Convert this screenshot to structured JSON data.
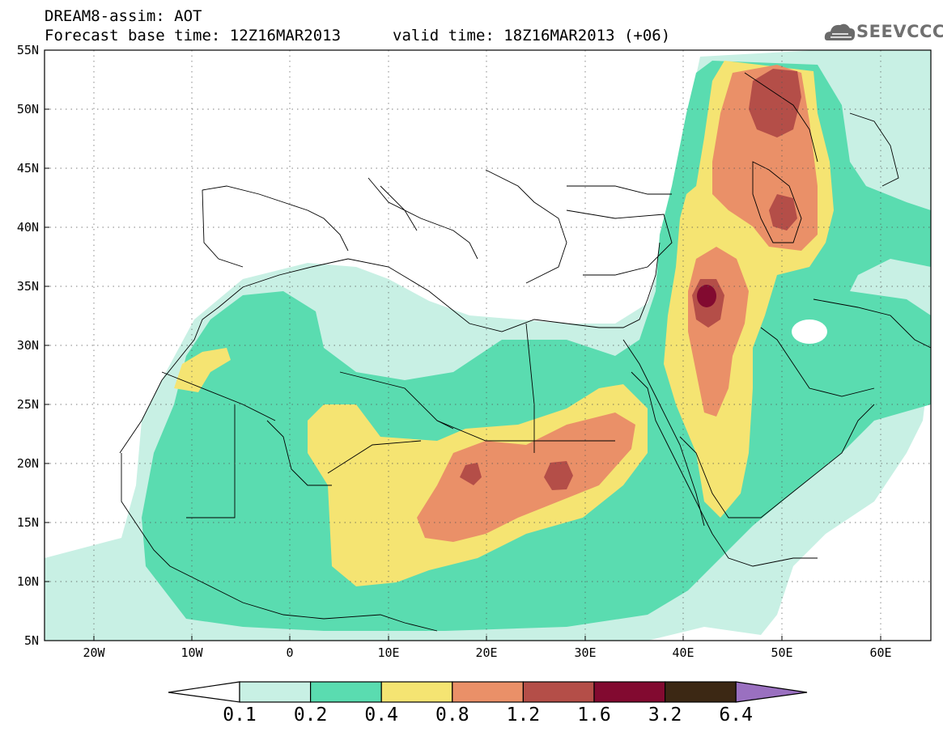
{
  "header": {
    "title": "DREAM8-assim: AOT",
    "base_time": "Forecast base time: 12Z16MAR2013",
    "valid_time": "valid time: 18Z16MAR2013 (+06)",
    "logo_text": "SEEVCCC"
  },
  "axes": {
    "lat_labels": [
      "55N",
      "50N",
      "45N",
      "40N",
      "35N",
      "30N",
      "25N",
      "20N",
      "15N",
      "10N",
      "5N"
    ],
    "lon_labels": [
      "20W",
      "10W",
      "0",
      "10E",
      "20E",
      "30E",
      "40E",
      "50E",
      "60E"
    ]
  },
  "colorbar": {
    "labels": [
      "0.1",
      "0.2",
      "0.4",
      "0.8",
      "1.2",
      "1.6",
      "3.2",
      "6.4"
    ],
    "colors": [
      "#ffffff",
      "#c8f0e4",
      "#5adcb0",
      "#f5e472",
      "#ea9068",
      "#b44e48",
      "#820a30",
      "#3c2814",
      "#9a70c0"
    ]
  },
  "colors": {
    "c1": "#c8f0e4",
    "c2": "#5adcb0",
    "c3": "#f5e472",
    "c4": "#ea9068",
    "c5": "#b44e48",
    "c6": "#820a30"
  }
}
